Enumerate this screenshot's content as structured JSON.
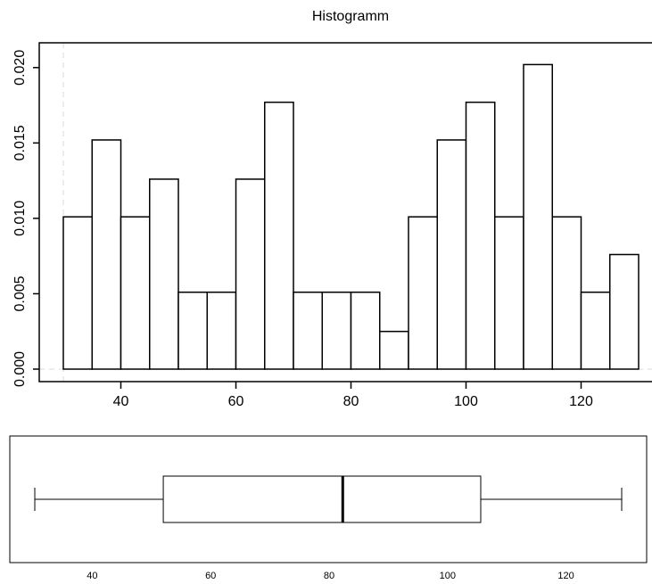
{
  "chart_data": [
    {
      "type": "bar",
      "title": "Histogramm",
      "xlabel": "",
      "ylabel": "",
      "xlim": [
        30,
        130
      ],
      "ylim": [
        0,
        0.0204
      ],
      "bin_edges": [
        30,
        35,
        40,
        45,
        50,
        55,
        60,
        65,
        70,
        75,
        80,
        85,
        90,
        95,
        100,
        105,
        110,
        115,
        120,
        125,
        130
      ],
      "values": [
        0.0101,
        0.0152,
        0.0101,
        0.0126,
        0.0051,
        0.0051,
        0.0126,
        0.0177,
        0.0051,
        0.0051,
        0.0051,
        0.0025,
        0.0101,
        0.0152,
        0.0177,
        0.0101,
        0.0202,
        0.0101,
        0.0051,
        0.0076
      ],
      "x_ticks": [
        40,
        60,
        80,
        100,
        120
      ],
      "x_tick_labels": [
        "40",
        "60",
        "80",
        "100",
        "120"
      ],
      "y_ticks": [
        0,
        0.005,
        0.01,
        0.015,
        0.02
      ],
      "y_tick_labels": [
        "0.000",
        "0.005",
        "0.010",
        "0.015",
        "0.020"
      ],
      "grid": false
    },
    {
      "type": "boxplot",
      "orientation": "horizontal",
      "xlim": [
        30,
        130
      ],
      "min": 30.3,
      "q1": 52.0,
      "median": 82.3,
      "q3": 105.6,
      "max": 129.4,
      "x_ticks": [
        40,
        60,
        80,
        100,
        120
      ],
      "x_tick_labels": [
        "40",
        "60",
        "80",
        "100",
        "120"
      ]
    }
  ],
  "colors": {
    "bar_fill": "#ffffff",
    "stroke": "#000000",
    "dashed_marker": "#d9d9d9"
  }
}
